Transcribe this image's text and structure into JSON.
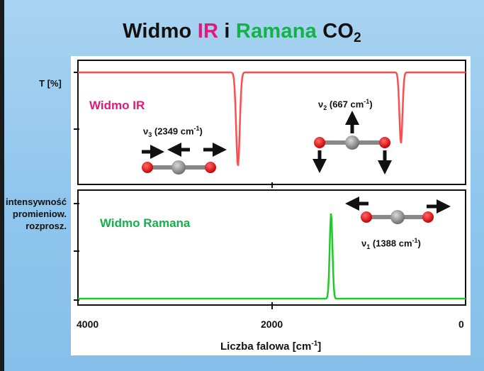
{
  "title": {
    "prefix": "Widmo ",
    "ir": "IR",
    "middle": " i ",
    "raman": "Ramana",
    "suffix": " CO",
    "subscript": "2"
  },
  "colors": {
    "ir": "#e0197a",
    "raman": "#14b14a",
    "ir_trace": "#ff4d4d",
    "raman_trace": "#1fc92a",
    "oxygen": "#e00000",
    "carbon": "#8a8a8a"
  },
  "chart_data": [
    {
      "type": "line",
      "name": "ir-spectrum",
      "series_label": "Widmo IR",
      "ylabel": "T [%]",
      "xlabel": "Liczba falowa [cm-1]",
      "xlim": [
        4000,
        0
      ],
      "x_ticks": [
        4000,
        2000,
        0
      ],
      "baseline": 1.0,
      "peaks": [
        {
          "x": 2349,
          "depth": 0.87,
          "width": 26
        },
        {
          "x": 667,
          "depth": 0.66,
          "width": 22
        }
      ],
      "annotations": [
        {
          "nu": "ν",
          "sub": "3",
          "value": " (2349 cm",
          "unit_sup": "-1",
          "close": ")"
        },
        {
          "nu": "ν",
          "sub": "2",
          "value": " (667 cm",
          "unit_sup": "-1",
          "close": ")"
        }
      ]
    },
    {
      "type": "line",
      "name": "raman-spectrum",
      "series_label": "Widmo Ramana",
      "ylabel_lines": [
        "intensywność",
        "promieniow.",
        "rozprosz."
      ],
      "xlabel": "Liczba falowa [cm-1]",
      "xlim": [
        4000,
        0
      ],
      "x_ticks": [
        4000,
        2000,
        0
      ],
      "baseline": 0.0,
      "peaks": [
        {
          "x": 1388,
          "height": 0.9,
          "width": 20
        }
      ],
      "annotations": [
        {
          "nu": "ν",
          "sub": "1",
          "value": " (1388 cm",
          "unit_sup": "-1",
          "close": ")"
        }
      ]
    }
  ],
  "axis": {
    "ticks": [
      "4000",
      "2000",
      "0"
    ],
    "xlabel_text": "Liczba falowa [cm",
    "xlabel_sup": "-1",
    "xlabel_close": "]"
  }
}
